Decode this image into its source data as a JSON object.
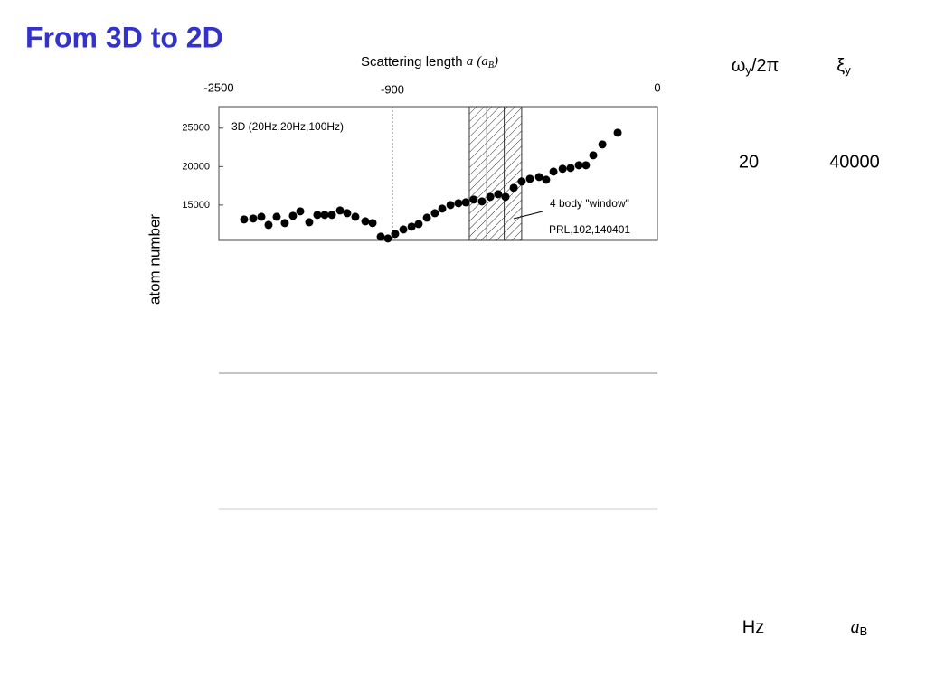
{
  "title": "From 3D to 2D",
  "chart_data": {
    "type": "scatter",
    "x_label": [
      "Scattering length",
      "a",
      "(a",
      "B",
      ")"
    ],
    "y_label": "atom number",
    "annotation": "3D (20Hz,20Hz,100Hz)",
    "window": {
      "label": "4 body \"window\"",
      "xrange": [
        -639,
        -461
      ]
    },
    "reference": "PRL,102,140401",
    "xlim": [
      -2500,
      0
    ],
    "xticks": [
      -2500,
      -900,
      0
    ],
    "ylim": [
      10400,
      27800
    ],
    "yticks": [
      15000,
      20000,
      25000
    ],
    "color": "#000000",
    "x": [
      -2267,
      -2183,
      -2108,
      -2042,
      -1967,
      -1892,
      -1817,
      -1750,
      -1667,
      -1592,
      -1525,
      -1458,
      -1383,
      -1317,
      -1242,
      -1150,
      -1083,
      -1008,
      -942,
      -891,
      -863,
      -835,
      -811,
      -783,
      -756,
      -731,
      -703,
      -676,
      -651,
      -624,
      -596,
      -568,
      -541,
      -516,
      -488,
      -461,
      -433,
      -402,
      -378,
      -353,
      -322,
      -295,
      -267,
      -243,
      -218,
      -187,
      -135
    ],
    "values": [
      13120,
      13240,
      13470,
      12410,
      13470,
      12650,
      13590,
      14180,
      12760,
      13710,
      13710,
      13710,
      14290,
      13940,
      13470,
      12880,
      12650,
      10880,
      10650,
      11240,
      11820,
      12180,
      12530,
      13350,
      13940,
      14530,
      15000,
      15240,
      15350,
      15710,
      15470,
      16060,
      16410,
      16060,
      17240,
      18060,
      18410,
      18650,
      18290,
      19350,
      19710,
      19820,
      20180,
      20180,
      21470,
      22880,
      24410
    ]
  },
  "table": {
    "headers": [
      [
        "ω",
        "y",
        "/2π"
      ],
      [
        "ξ",
        "y"
      ]
    ],
    "rows": [
      [
        "20",
        "40000"
      ]
    ],
    "units": [
      "Hz",
      [
        "a",
        "B"
      ]
    ]
  }
}
